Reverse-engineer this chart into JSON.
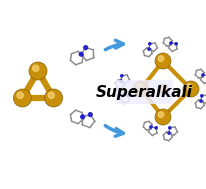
{
  "background_color": "#ffffff",
  "title": "",
  "superalkali_text": "Superalkali",
  "superalkali_fontsize": 11,
  "superalkali_fontweight": "bold",
  "superalkali_color": "#000000",
  "gold_color": "#C8900A",
  "gold_edge": "#8B6000",
  "bond_color": "#C8900A",
  "bond_width": 3.5,
  "arrow_color": "#4499DD",
  "ring_bond_color": "#888888",
  "nitrogen_color": "#2222CC",
  "carbon_color": "#999999",
  "halo_color": "#EEEEFF",
  "fig_width": 2.07,
  "fig_height": 1.89,
  "dpi": 100
}
